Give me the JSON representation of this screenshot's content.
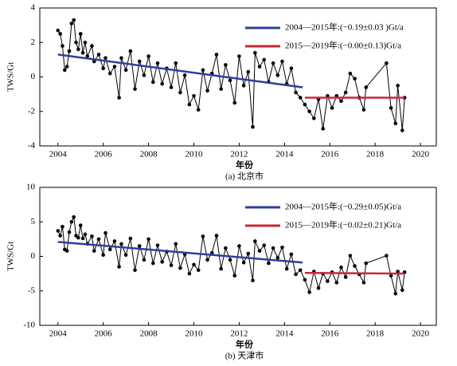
{
  "chart_data": [
    {
      "type": "line",
      "caption": "(a) 北京市",
      "xlabel": "年份",
      "ylabel": "TWS/Gt",
      "xlim": [
        2003.2,
        2020.7
      ],
      "xticks": [
        2004,
        2006,
        2008,
        2010,
        2012,
        2014,
        2016,
        2018,
        2020
      ],
      "ylim": [
        -4,
        4
      ],
      "yticks": [
        -4,
        -2,
        0,
        2,
        4
      ],
      "legend": "upper right",
      "series": [
        {
          "color": "#000000",
          "marker": true,
          "x": [
            2004.0,
            2004.1,
            2004.2,
            2004.3,
            2004.4,
            2004.5,
            2004.6,
            2004.7,
            2004.8,
            2004.9,
            2005.0,
            2005.1,
            2005.2,
            2005.3,
            2005.5,
            2005.6,
            2005.8,
            2006.0,
            2006.1,
            2006.3,
            2006.5,
            2006.7,
            2006.8,
            2007.0,
            2007.2,
            2007.4,
            2007.6,
            2007.8,
            2008.0,
            2008.2,
            2008.4,
            2008.6,
            2008.8,
            2009.0,
            2009.2,
            2009.4,
            2009.6,
            2009.8,
            2010.0,
            2010.2,
            2010.4,
            2010.6,
            2010.8,
            2011.0,
            2011.2,
            2011.4,
            2011.6,
            2011.8,
            2012.0,
            2012.2,
            2012.4,
            2012.6,
            2012.7,
            2012.9,
            2013.1,
            2013.3,
            2013.5,
            2013.7,
            2013.9,
            2014.1,
            2014.3,
            2014.5,
            2014.7,
            2014.9,
            2015.1,
            2015.3,
            2015.5,
            2015.7,
            2015.9,
            2016.1,
            2016.3,
            2016.5,
            2016.7,
            2016.9,
            2017.1,
            2017.3,
            2017.5,
            2017.6,
            2018.5,
            2018.7,
            2018.9,
            2019.0,
            2019.2,
            2019.3
          ],
          "values": [
            2.7,
            2.5,
            1.8,
            0.4,
            0.6,
            1.5,
            3.1,
            3.3,
            2.0,
            1.6,
            2.5,
            1.4,
            2.0,
            1.2,
            1.8,
            0.9,
            1.3,
            0.5,
            1.1,
            0.2,
            0.6,
            -1.2,
            1.1,
            0.4,
            1.5,
            -0.7,
            0.9,
            0.1,
            1.2,
            -0.3,
            0.8,
            -0.4,
            0.5,
            -0.6,
            0.8,
            -0.9,
            0.1,
            -1.6,
            -1.1,
            -1.9,
            0.4,
            -0.8,
            0.2,
            1.3,
            -0.7,
            0.7,
            -0.2,
            -1.5,
            1.2,
            -0.5,
            0.3,
            -2.9,
            1.4,
            0.6,
            1.0,
            -0.3,
            0.8,
            0.1,
            0.9,
            -0.4,
            0.5,
            -0.9,
            -1.2,
            -1.6,
            -2.0,
            -2.4,
            -1.3,
            -3.0,
            -1.1,
            -1.8,
            -1.1,
            -1.4,
            -0.9,
            0.2,
            -0.1,
            -1.2,
            -1.9,
            -0.6,
            0.8,
            -1.8,
            -2.7,
            -0.5,
            -3.1,
            -1.2
          ]
        },
        {
          "name": "2004—2015年:(−0.19±0.03 )Gt/a",
          "color": "#2e3f9e",
          "x": [
            2004.0,
            2014.8
          ],
          "values": [
            1.3,
            -0.6
          ]
        },
        {
          "name": "2015—2019年:(−0.00±0.13)Gt/a",
          "color": "#c8283a",
          "x": [
            2014.9,
            2019.3
          ],
          "values": [
            -1.2,
            -1.2
          ]
        }
      ]
    },
    {
      "type": "line",
      "caption": "(b) 天津市",
      "xlabel": "年份",
      "ylabel": "TWS/Gt",
      "xlim": [
        2003.2,
        2020.7
      ],
      "xticks": [
        2004,
        2006,
        2008,
        2010,
        2012,
        2014,
        2016,
        2018,
        2020
      ],
      "ylim": [
        -10,
        10
      ],
      "yticks": [
        -10,
        -5,
        0,
        5,
        10
      ],
      "legend": "upper right",
      "series": [
        {
          "color": "#000000",
          "marker": true,
          "x": [
            2004.0,
            2004.1,
            2004.2,
            2004.3,
            2004.4,
            2004.5,
            2004.6,
            2004.7,
            2004.8,
            2004.9,
            2005.0,
            2005.1,
            2005.2,
            2005.3,
            2005.5,
            2005.6,
            2005.8,
            2006.0,
            2006.1,
            2006.3,
            2006.5,
            2006.7,
            2006.8,
            2007.0,
            2007.2,
            2007.4,
            2007.6,
            2007.8,
            2008.0,
            2008.2,
            2008.4,
            2008.6,
            2008.8,
            2009.0,
            2009.2,
            2009.4,
            2009.6,
            2009.8,
            2010.0,
            2010.2,
            2010.4,
            2010.6,
            2010.8,
            2011.0,
            2011.2,
            2011.4,
            2011.6,
            2011.8,
            2012.0,
            2012.2,
            2012.4,
            2012.6,
            2012.7,
            2012.9,
            2013.1,
            2013.3,
            2013.5,
            2013.7,
            2013.9,
            2014.1,
            2014.3,
            2014.5,
            2014.7,
            2014.9,
            2015.1,
            2015.3,
            2015.5,
            2015.7,
            2015.9,
            2016.1,
            2016.3,
            2016.5,
            2016.7,
            2016.9,
            2017.1,
            2017.3,
            2017.5,
            2017.6,
            2018.5,
            2018.7,
            2018.9,
            2019.0,
            2019.2,
            2019.3
          ],
          "values": [
            3.7,
            3.0,
            4.3,
            1.0,
            0.8,
            3.5,
            5.0,
            5.7,
            3.0,
            2.7,
            4.5,
            2.6,
            3.2,
            1.8,
            2.9,
            0.8,
            2.5,
            0.2,
            3.4,
            1.0,
            2.2,
            -1.5,
            1.8,
            0.2,
            2.6,
            -2.0,
            1.5,
            -0.5,
            2.5,
            -1.0,
            1.6,
            -0.8,
            0.7,
            -1.3,
            1.8,
            -1.7,
            0.3,
            -2.5,
            -1.2,
            -2.0,
            2.9,
            -0.5,
            0.5,
            3.0,
            -1.8,
            1.2,
            -0.5,
            -2.8,
            1.5,
            -0.9,
            0.4,
            -3.5,
            2.2,
            0.8,
            1.6,
            -1.0,
            1.2,
            -0.2,
            1.3,
            -1.8,
            0.3,
            -2.6,
            -2.0,
            -3.4,
            -5.2,
            -2.2,
            -4.6,
            -2.5,
            -3.6,
            -2.3,
            -3.8,
            -1.6,
            -3.0,
            0.1,
            -1.4,
            -2.6,
            -3.8,
            -1.0,
            0.1,
            -2.8,
            -5.4,
            -2.2,
            -4.9,
            -2.3
          ]
        },
        {
          "name": "2004—2015年:(−0.29±0.05)Gt/a",
          "color": "#2e3f9e",
          "x": [
            2004.0,
            2014.8
          ],
          "values": [
            2.1,
            -0.9
          ]
        },
        {
          "name": "2015—2019年:(−0.02±0.21)Gt/a",
          "color": "#c8283a",
          "x": [
            2014.9,
            2019.3
          ],
          "values": [
            -2.4,
            -2.5
          ]
        }
      ]
    }
  ]
}
